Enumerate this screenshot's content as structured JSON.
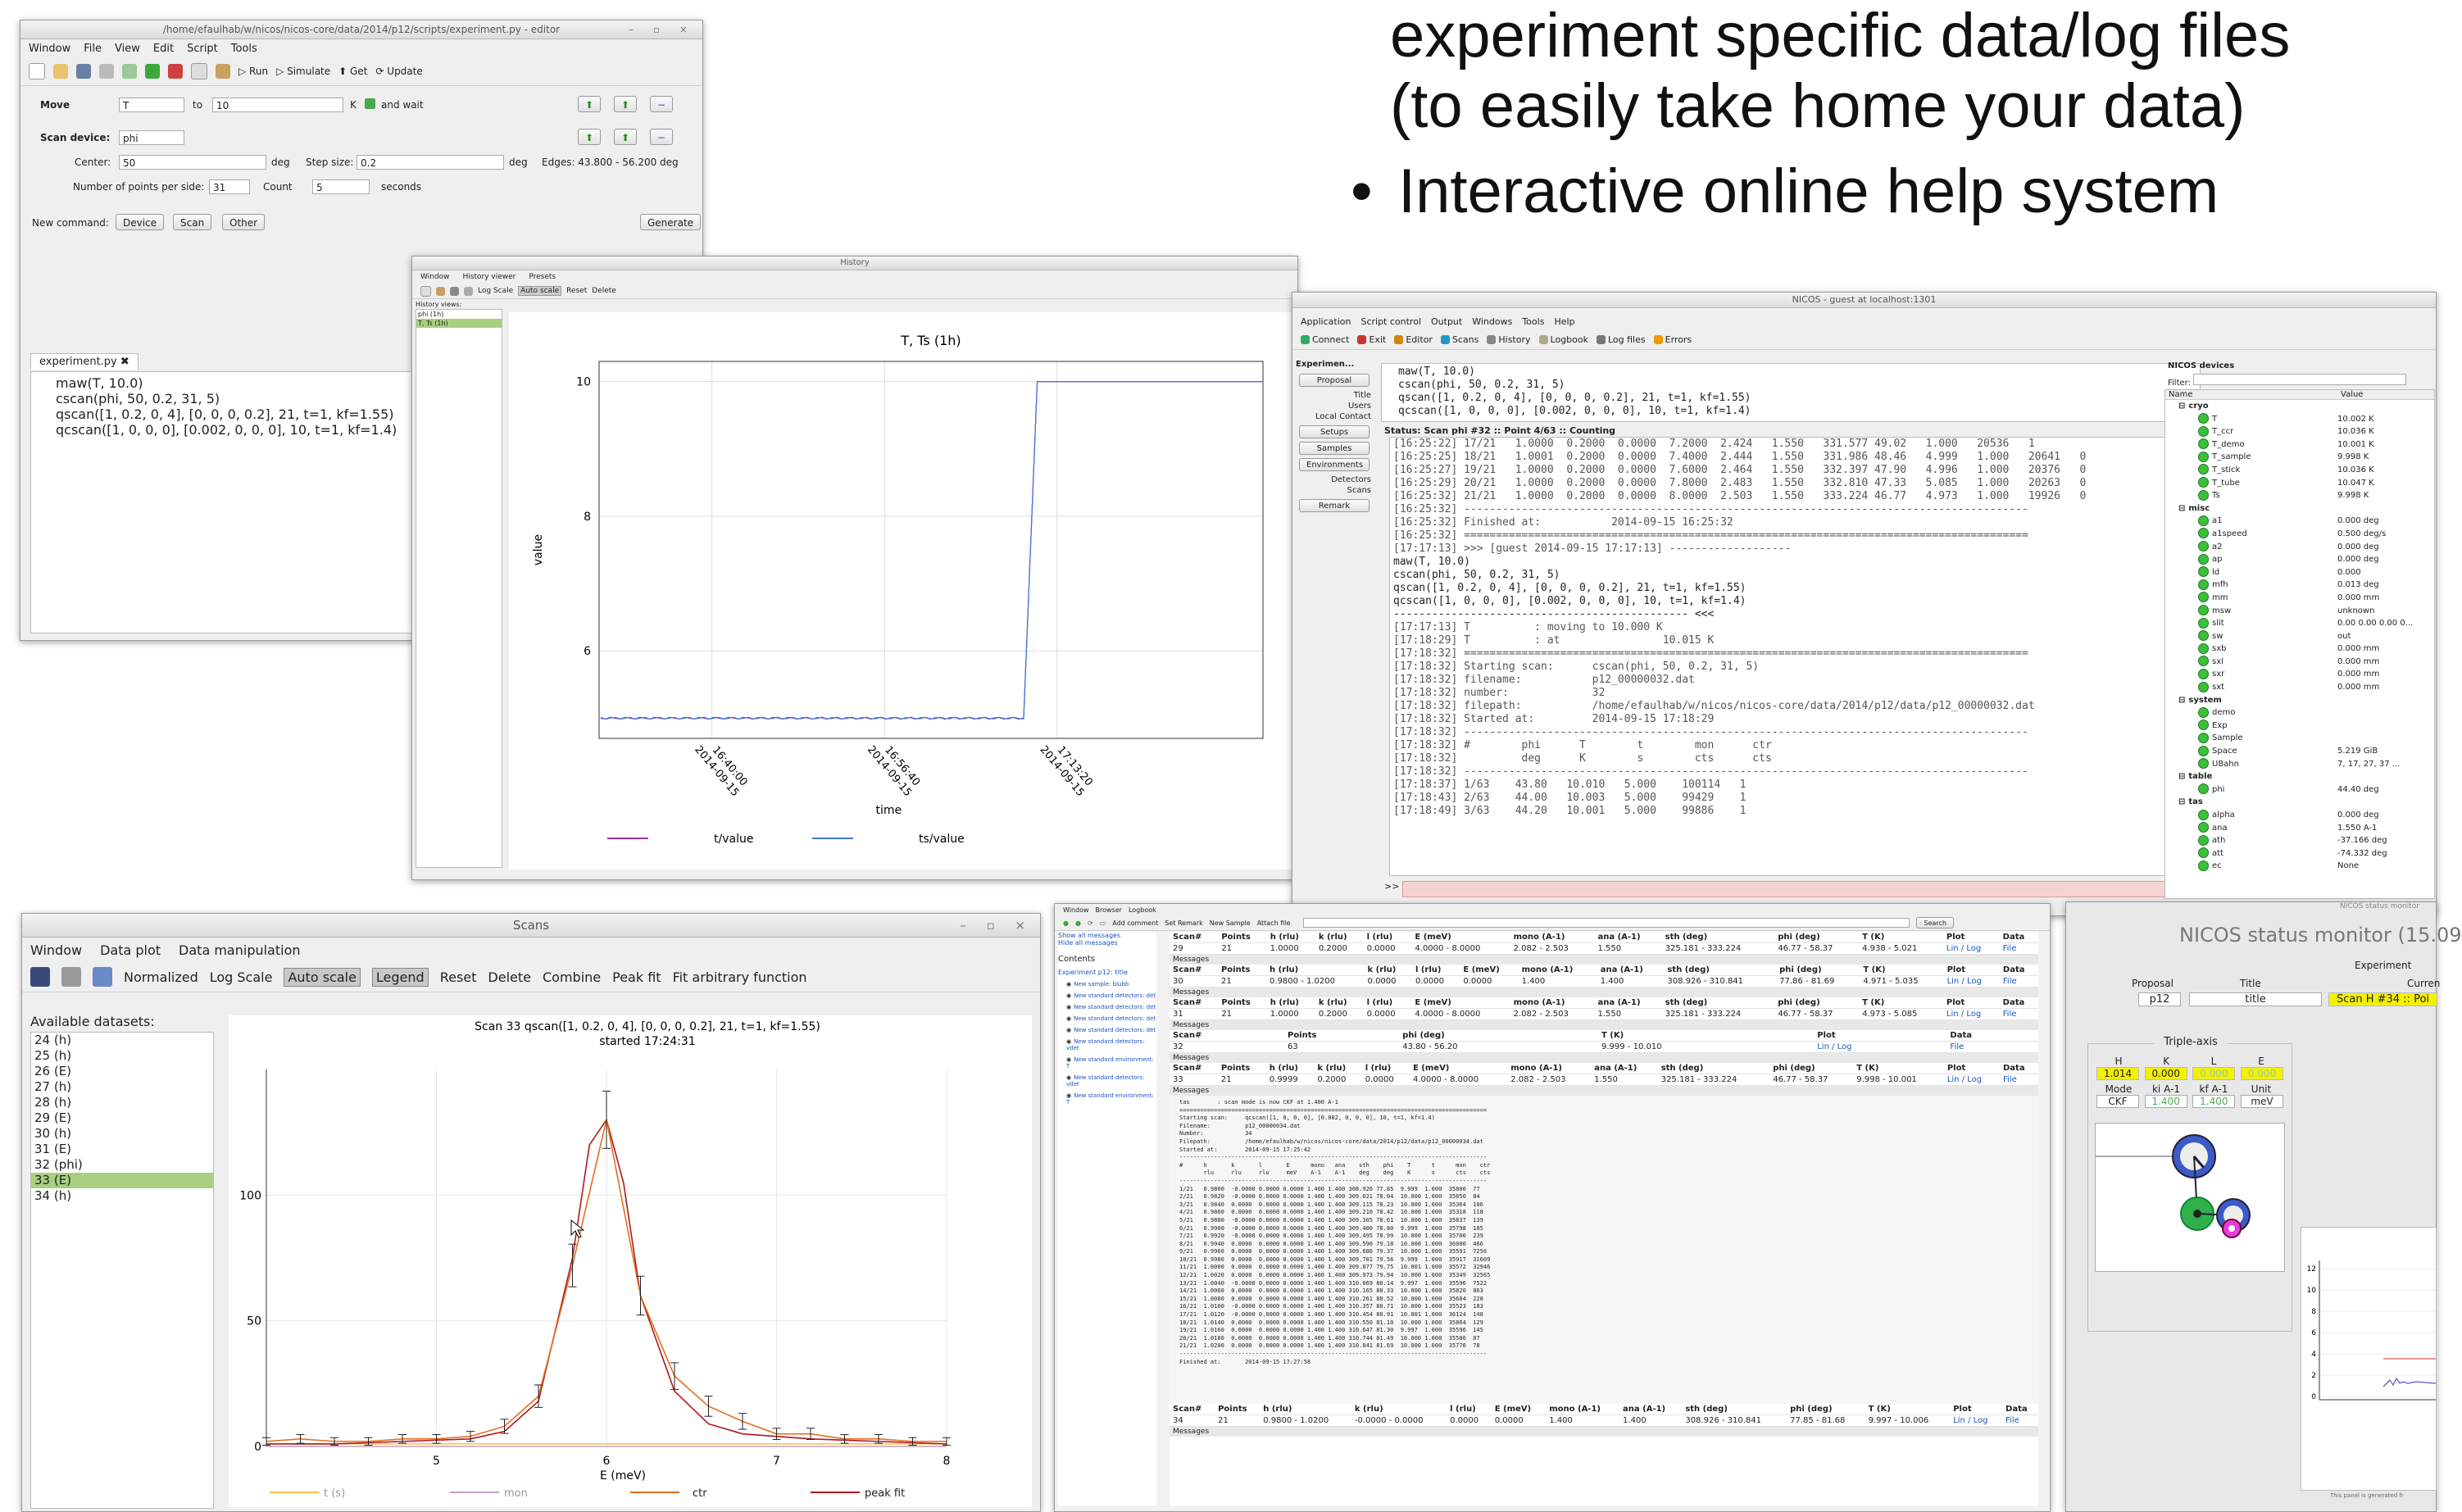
{
  "slide": {
    "line1": "experiment specific data/log files",
    "line2": "(to easily take home your data)",
    "bullet": "•",
    "line3": "Interactive online help system"
  },
  "editor": {
    "title": "/home/efaulhab/w/nicos/nicos-core/data/2014/p12/scripts/experiment.py - editor",
    "menu": [
      "Window",
      "File",
      "View",
      "Edit",
      "Script",
      "Tools"
    ],
    "toolbar": {
      "run": "Run",
      "simulate": "Simulate",
      "get": "Get",
      "update": "Update"
    },
    "move_label": "Move",
    "move_dev": "T",
    "to_label": "to",
    "move_target": "10",
    "move_unit": "K",
    "wait_label": "and wait",
    "scan_device_label": "Scan device:",
    "scan_device": "phi",
    "center_label": "Center:",
    "center": "50",
    "center_unit": "deg",
    "step_label": "Step size:",
    "step": "0.2",
    "step_unit": "deg",
    "edges": "Edges: 43.800 - 56.200 deg",
    "points_label": "Number of points per side:",
    "points": "31",
    "count_label": "Count",
    "count": "5",
    "count_unit": "seconds",
    "newcmd_label": "New command:",
    "newcmd_btns": [
      "Device",
      "Scan",
      "Other"
    ],
    "generate": "Generate",
    "tab": "experiment.py",
    "code": [
      "maw(T, 10.0)",
      "cscan(phi, 50, 0.2, 31, 5)",
      "qscan([1, 0.2, 0, 4], [0, 0, 0, 0.2], 21, t=1, kf=1.55)",
      "qcscan([1, 0, 0, 0], [0.002, 0, 0, 0], 10, t=1, kf=1.4)"
    ]
  },
  "history": {
    "title": "History",
    "menu": [
      "Window",
      "History viewer",
      "Presets"
    ],
    "toolbar": [
      "Log Scale",
      "Auto scale",
      "Reset",
      "Delete"
    ],
    "views_label": "History views:",
    "views": [
      "phi (1h)",
      "T, Ts (1h)"
    ],
    "chart_title": "T, Ts (1h)",
    "ylabel": "value",
    "xlabel": "time",
    "legend": [
      "t/value",
      "ts/value"
    ]
  },
  "nicos": {
    "title": "NICOS - guest at localhost:1301",
    "menu": [
      "Application",
      "Script control",
      "Output",
      "Windows",
      "Tools",
      "Help"
    ],
    "toolbar": [
      "Connect",
      "Exit",
      "Editor",
      "Scans",
      "History",
      "Logbook",
      "Log files",
      "Errors"
    ],
    "side_header": "Experimen...",
    "side_buttons": [
      "Proposal",
      "Setups",
      "Samples",
      "Environments",
      "Remark"
    ],
    "side_labels": [
      "Title",
      "Users",
      "Local Contact",
      "Detectors",
      "Scans"
    ],
    "script_lines": [
      "maw(T, 10.0)",
      "cscan(phi, 50, 0.2, 31, 5)",
      "qscan([1, 0.2, 0, 4], [0, 0, 0, 0.2], 21, t=1, kf=1.55)",
      "qcscan([1, 0, 0, 0], [0.002, 0, 0, 0], 10, t=1, kf=1.4)"
    ],
    "status": "Status: Scan phi #32 :: Point 4/63 :: Counting",
    "log": [
      "[16:25:22] 17/21   1.0000  0.2000  0.0000  7.2000  2.424   1.550   331.577 49.02   1.000   20536   1",
      "[16:25:25] 18/21   1.0001  0.2000  0.0000  7.4000  2.444   1.550   331.986 48.46   4.999   1.000   20641   0",
      "[16:25:27] 19/21   1.0000  0.2000  0.0000  7.6000  2.464   1.550   332.397 47.90   4.996   1.000   20376   0",
      "[16:25:29] 20/21   1.0000  0.2000  0.0000  7.8000  2.483   1.550   332.810 47.33   5.085   1.000   20263   0",
      "[16:25:32] 21/21   1.0000  0.2000  0.0000  8.0000  2.503   1.550   333.224 46.77   4.973   1.000   19926   0",
      "[16:25:32] ----------------------------------------------------------------------------------------",
      "[16:25:32] Finished at:           2014-09-15 16:25:32",
      "[16:25:32] ========================================================================================",
      "[17:17:13] >>> [guest 2014-09-15 17:17:13] -------------------",
      "maw(T, 10.0)",
      "cscan(phi, 50, 0.2, 31, 5)",
      "qscan([1, 0.2, 0, 4], [0, 0, 0, 0.2], 21, t=1, kf=1.55)",
      "qcscan([1, 0, 0, 0], [0.002, 0, 0, 0], 10, t=1, kf=1.4)",
      "",
      "---------------------------------------------- <<<",
      "[17:17:13] T          : moving to 10.000 K",
      "[17:18:29] T          : at                10.015 K",
      "[17:18:32] ========================================================================================",
      "[17:18:32] Starting scan:      cscan(phi, 50, 0.2, 31, 5)",
      "[17:18:32] filename:           p12_00000032.dat",
      "[17:18:32] number:             32",
      "[17:18:32] filepath:           /home/efaulhab/w/nicos/nicos-core/data/2014/p12/data/p12_00000032.dat",
      "[17:18:32] Started at:         2014-09-15 17:18:29",
      "[17:18:32] ----------------------------------------------------------------------------------------",
      "[17:18:32] #        phi      T        t        mon      ctr",
      "[17:18:32]          deg      K        s        cts      cts",
      "[17:18:32] ----------------------------------------------------------------------------------------",
      "[17:18:37] 1/63    43.80   10.010   5.000    100114   1",
      "[17:18:43] 2/63    44.00   10.003   5.000    99429    1",
      "[17:18:49] 3/63    44.20   10.001   5.000    99886    1"
    ],
    "prompt": ">>",
    "devices_title": "NICOS devices",
    "filter_label": "Filter:",
    "dev_cols": [
      "Name",
      "Value"
    ],
    "devices": [
      {
        "name": "cryo",
        "value": "",
        "group": true
      },
      {
        "name": "T",
        "value": "10.002 K"
      },
      {
        "name": "T_ccr",
        "value": "10.036 K"
      },
      {
        "name": "T_demo",
        "value": "10.001 K"
      },
      {
        "name": "T_sample",
        "value": "9.998 K"
      },
      {
        "name": "T_stick",
        "value": "10.036 K"
      },
      {
        "name": "T_tube",
        "value": "10.047 K"
      },
      {
        "name": "Ts",
        "value": "9.998 K"
      },
      {
        "name": "misc",
        "value": "",
        "group": true
      },
      {
        "name": "a1",
        "value": "0.000 deg"
      },
      {
        "name": "a1speed",
        "value": "0.500 deg/s"
      },
      {
        "name": "a2",
        "value": "0.000 deg"
      },
      {
        "name": "ap",
        "value": "0.000 deg"
      },
      {
        "name": "ld",
        "value": "0.000"
      },
      {
        "name": "mfh",
        "value": "0.013 deg"
      },
      {
        "name": "mm",
        "value": "0.000 mm"
      },
      {
        "name": "msw",
        "value": "unknown"
      },
      {
        "name": "slit",
        "value": "0.00 0.00 0.00 0..."
      },
      {
        "name": "sw",
        "value": "out"
      },
      {
        "name": "sxb",
        "value": "0.000 mm"
      },
      {
        "name": "sxl",
        "value": "0.000 mm"
      },
      {
        "name": "sxr",
        "value": "0.000 mm"
      },
      {
        "name": "sxt",
        "value": "0.000 mm"
      },
      {
        "name": "system",
        "value": "",
        "group": true
      },
      {
        "name": "demo",
        "value": ""
      },
      {
        "name": "Exp",
        "value": ""
      },
      {
        "name": "Sample",
        "value": ""
      },
      {
        "name": "Space",
        "value": "5.219 GiB"
      },
      {
        "name": "UBahn",
        "value": "7, 17, 27, 37 ..."
      },
      {
        "name": "table",
        "value": "",
        "group": true
      },
      {
        "name": "phi",
        "value": "44.40 deg"
      },
      {
        "name": "tas",
        "value": "",
        "group": true
      },
      {
        "name": "alpha",
        "value": "0.000 deg"
      },
      {
        "name": "ana",
        "value": "1.550 A-1"
      },
      {
        "name": "ath",
        "value": "-37.166 deg"
      },
      {
        "name": "att",
        "value": "-74.332 deg"
      },
      {
        "name": "ec",
        "value": "None"
      }
    ]
  },
  "scans": {
    "title": "Scans",
    "menu": [
      "Window",
      "Data plot",
      "Data manipulation"
    ],
    "toolbar": [
      "Normalized",
      "Log Scale",
      "Auto scale",
      "Legend",
      "Reset",
      "Delete",
      "Combine",
      "Peak fit",
      "Fit arbitrary function"
    ],
    "datasets_label": "Available datasets:",
    "datasets": [
      "24 (h)",
      "25 (h)",
      "26 (E)",
      "27 (h)",
      "28 (h)",
      "29 (E)",
      "30 (h)",
      "31 (E)",
      "32 (phi)",
      "33 (E)",
      "34 (h)"
    ],
    "selected_index": 9,
    "chart_title": "Scan 33 qscan([1, 0.2, 0, 4], [0, 0, 0, 0.2], 21, t=1, kf=1.55)",
    "chart_subtitle": "started 17:24:31",
    "legend": [
      "t (s)",
      "mon",
      "ctr",
      "peak fit"
    ]
  },
  "logbook": {
    "menu": [
      "Window",
      "Browser",
      "Logbook"
    ],
    "toolbar": [
      "Add comment",
      "Set Remark",
      "New Sample",
      "Attach file"
    ],
    "search_btn": "Search",
    "side_links": [
      "Show all messages",
      "Hide all messages"
    ],
    "contents_label": "Contents",
    "contents_head": "Experiment p12: title",
    "entries": [
      "New sample: blubb",
      "New standard detectors: det",
      "New standard detectors: det",
      "New standard detectors: det",
      "New standard detectors: det",
      "New standard detectors: vdet",
      "New standard environment: T",
      "New standard detectors: vdet",
      "New standard environment: T"
    ],
    "columns": [
      "Scan#",
      "Points",
      "h (rlu)",
      "k (rlu)",
      "l (rlu)",
      "E (meV)",
      "mono (A-1)",
      "ana (A-1)",
      "sth (deg)",
      "phi (deg)",
      "T (K)",
      "Plot",
      "Data"
    ],
    "rows": [
      [
        "29",
        "21",
        "1.0000",
        "0.2000",
        "0.0000",
        "4.0000 - 8.0000",
        "2.082 - 2.503",
        "1.550",
        "325.181 - 333.224",
        "46.77 - 58.37",
        "4.938 - 5.021",
        "Lin / Log",
        "File"
      ],
      [
        "30",
        "21",
        "0.9800 - 1.0200",
        "0.0000",
        "0.0000",
        "0.0000",
        "1.400",
        "1.400",
        "308.926 - 310.841",
        "77.86 - 81.69",
        "4.971 - 5.035",
        "Lin / Log",
        "File"
      ],
      [
        "31",
        "21",
        "1.0000",
        "0.2000",
        "0.0000",
        "4.0000 - 8.0000",
        "2.082 - 2.503",
        "1.550",
        "325.181 - 333.224",
        "46.77 - 58.37",
        "4.973 - 5.085",
        "Lin / Log",
        "File"
      ]
    ],
    "row32_cols": [
      "Scan#",
      "Points",
      "phi (deg)",
      "T (K)",
      "Plot",
      "Data"
    ],
    "row32": [
      "32",
      "63",
      "43.80 - 56.20",
      "9.999 - 10.010",
      "Lin / Log",
      "File"
    ],
    "row33": [
      "33",
      "21",
      "0.9999",
      "0.2000",
      "0.0000",
      "4.0000 - 8.0000",
      "2.082 - 2.503",
      "1.550",
      "325.181 - 333.224",
      "46.77 - 58.37",
      "9.998 - 10.001",
      "Lin / Log",
      "File"
    ],
    "row34": [
      "34",
      "21",
      "0.9800 - 1.0200",
      "-0.0000 - 0.0000",
      "0.0000",
      "0.0000",
      "1.400",
      "1.400",
      "308.926 - 310.841",
      "77.85 - 81.68",
      "9.997 - 10.006",
      "Lin / Log",
      "File"
    ],
    "messages_label": "Messages",
    "pre_lines": [
      "tas        : scan mode is now CKF at 1.400 A-1",
      "=========================================================================================",
      "Starting scan:     qcscan([1, 0, 0, 0], [0.002, 0, 0, 0], 10, t=1, kf=1.4)",
      "Filename:          p12_00000034.dat",
      "Number:            34",
      "Filepath:          /home/efaulhab/w/nicos/nicos-core/data/2014/p12/data/p12_00000034.dat",
      "Started at:        2014-09-15 17:25:42",
      "-----------------------------------------------------------------------------------------",
      "#      h       k       l       E      mono   ana    sth    phi    T      t      mon    ctr",
      "       rlu     rlu     rlu     meV    A-1    A-1    deg    deg    K      s      cts    cts",
      "-----------------------------------------------------------------------------------------",
      "1/21   0.9800  -0.0000 0.0000 0.0000 1.400 1.400 308.926 77.85  9.999  1.000  35800  77",
      "2/21   0.9820  -0.0000 0.0000 0.0000 1.400 1.400 309.021 78.04  10.000 1.000  35850  84",
      "3/21   0.9840  0.0000  0.0000 0.0000 1.400 1.400 309.115 78.23  10.000 1.000  35364  106",
      "4/21   0.9860  0.0000  0.0000 0.0000 1.400 1.400 309.210 78.42  10.000 1.000  35318  118",
      "5/21   0.9880  -0.0000 0.0000 0.0000 1.400 1.400 309.305 78.61  10.000 1.000  35837  139",
      "6/21   0.9900  -0.0000 0.0000 0.0000 1.400 1.400 309.400 78.80  9.999  1.000  35798  185",
      "7/21   0.9920  -0.0000 0.0000 0.0000 1.400 1.400 309.495 78.99  10.000 1.000  35700  239",
      "8/21   0.9940  0.0000  0.0000 0.0000 1.400 1.400 309.590 79.18  10.000 1.000  36000  466",
      "9/21   0.9960  0.0000  0.0000 0.0000 1.400 1.400 309.686 79.37  10.000 1.000  35591  7256",
      "10/21  0.9980  0.0000  0.0000 0.0000 1.400 1.400 309.781 79.56  9.999  1.000  35917  31609",
      "11/21  1.0000  0.0000  0.0000 0.0000 1.400 1.400 309.877 79.75  10.001 1.000  35572  32946",
      "12/21  1.0020  0.0000  0.0000 0.0000 1.400 1.400 309.973 79.94  10.000 1.000  35349  32565",
      "13/21  1.0040  -0.0000 0.0000 0.0000 1.400 1.400 310.069 80.14  9.997  1.000  35596  7522",
      "14/21  1.0060  0.0000  0.0000 0.0000 1.400 1.400 310.165 80.33  10.000 1.000  35820  863",
      "15/21  1.0080  0.0000  0.0000 0.0000 1.400 1.400 310.261 80.52  10.000 1.000  35604  228",
      "16/21  1.0100  -0.0000 0.0000 0.0000 1.400 1.400 310.357 80.71  10.000 1.000  35523  183",
      "17/21  1.0120  -0.0000 0.0000 0.0000 1.400 1.400 310.454 80.91  10.001 1.000  36124  148",
      "18/21  1.0140  0.0000  0.0000 0.0000 1.400 1.400 310.550 81.10  10.000 1.000  35864  129",
      "19/21  1.0160  0.0000  0.0000 0.0000 1.400 1.400 310.647 81.30  9.997  1.000  35596  145",
      "20/21  1.0180  0.0000  0.0000 0.0000 1.400 1.400 310.744 81.49  10.000 1.000  35586  87",
      "21/21  1.0200  0.0000  0.0000 0.0000 1.400 1.400 310.841 81.69  10.000 1.000  35776  78",
      "-----------------------------------------------------------------------------------------",
      "Finished at:       2014-09-15 17:27:58"
    ]
  },
  "monitor": {
    "small_title": "NICOS status monitor",
    "title": "NICOS status monitor (15.09",
    "experiment_label": "Experiment",
    "proposal_label": "Proposal",
    "title_label": "Title",
    "current_label": "Curren",
    "proposal": "p12",
    "exp_title": "title",
    "current": "Scan H #34 :: Poi",
    "triple_label": "Triple-axis",
    "hkle_labels": [
      "H",
      "K",
      "L",
      "E"
    ],
    "hkle_values": [
      "1.014",
      "0.000",
      "0.000",
      "0.000"
    ],
    "mode_labels": [
      "Mode",
      "ki A-1",
      "kf A-1",
      "Unit"
    ],
    "mode_values": [
      "CKF",
      "1.400",
      "1.400",
      "meV"
    ],
    "plot_ticks": [
      "12",
      "10",
      "8",
      "6",
      "4",
      "2",
      "0"
    ],
    "footer": "This panel is generated fr"
  },
  "chart_data": [
    {
      "type": "line",
      "title": "T, Ts (1h)",
      "xlabel": "time",
      "ylabel": "value",
      "xticks": [
        "16:40:00 2014-09-15",
        "16:56:40 2014-09-15",
        "17:13:20 2014-09-15"
      ],
      "yticks": [
        6,
        8,
        10
      ],
      "ylim": [
        4.7,
        10.3
      ],
      "series": [
        {
          "name": "t/value",
          "x": [
            0,
            0.6,
            0.62,
            0.64,
            0.66,
            0.68,
            1.0
          ],
          "values": [
            5.0,
            5.0,
            5.0,
            5.0,
            10.0,
            10.0,
            10.0
          ]
        },
        {
          "name": "ts/value",
          "x": [
            0,
            0.6,
            0.62,
            0.64,
            0.66,
            0.68,
            1.0
          ],
          "values": [
            5.0,
            5.0,
            5.0,
            5.0,
            10.0,
            10.0,
            10.0
          ]
        }
      ],
      "legend": "bottom"
    },
    {
      "type": "line",
      "title": "Scan 33 qscan([1, 0.2, 0, 4], [0, 0, 0, 0.2], 21, t=1, kf=1.55)",
      "subtitle": "started 17:24:31",
      "xlabel": "E (meV)",
      "ylabel": "",
      "xlim": [
        4,
        8
      ],
      "ylim": [
        0,
        150
      ],
      "xticks": [
        5,
        6,
        7,
        8
      ],
      "yticks": [
        0,
        50,
        100
      ],
      "series": [
        {
          "name": "ctr",
          "x": [
            4.0,
            4.2,
            4.4,
            4.6,
            4.8,
            5.0,
            5.2,
            5.4,
            5.6,
            5.8,
            6.0,
            6.2,
            6.4,
            6.6,
            6.8,
            7.0,
            7.2,
            7.4,
            7.6,
            7.8,
            8.0
          ],
          "values": [
            2,
            3,
            2,
            2,
            3,
            3,
            4,
            8,
            20,
            72,
            130,
            60,
            28,
            16,
            10,
            5,
            5,
            3,
            3,
            2,
            2
          ]
        },
        {
          "name": "peak fit",
          "x": [
            4.0,
            4.4,
            4.8,
            5.2,
            5.4,
            5.6,
            5.8,
            5.9,
            6.0,
            6.1,
            6.2,
            6.4,
            6.6,
            6.8,
            7.2,
            7.6,
            8.0
          ],
          "values": [
            1,
            1,
            2,
            3,
            6,
            18,
            75,
            120,
            130,
            105,
            60,
            22,
            9,
            5,
            3,
            2,
            1
          ]
        },
        {
          "name": "t (s)",
          "x": [
            4.0,
            8.0
          ],
          "values": [
            1,
            1
          ]
        },
        {
          "name": "mon",
          "x": [
            4.0,
            8.0
          ],
          "values": [
            0,
            0
          ]
        }
      ],
      "legend": "bottom"
    }
  ]
}
